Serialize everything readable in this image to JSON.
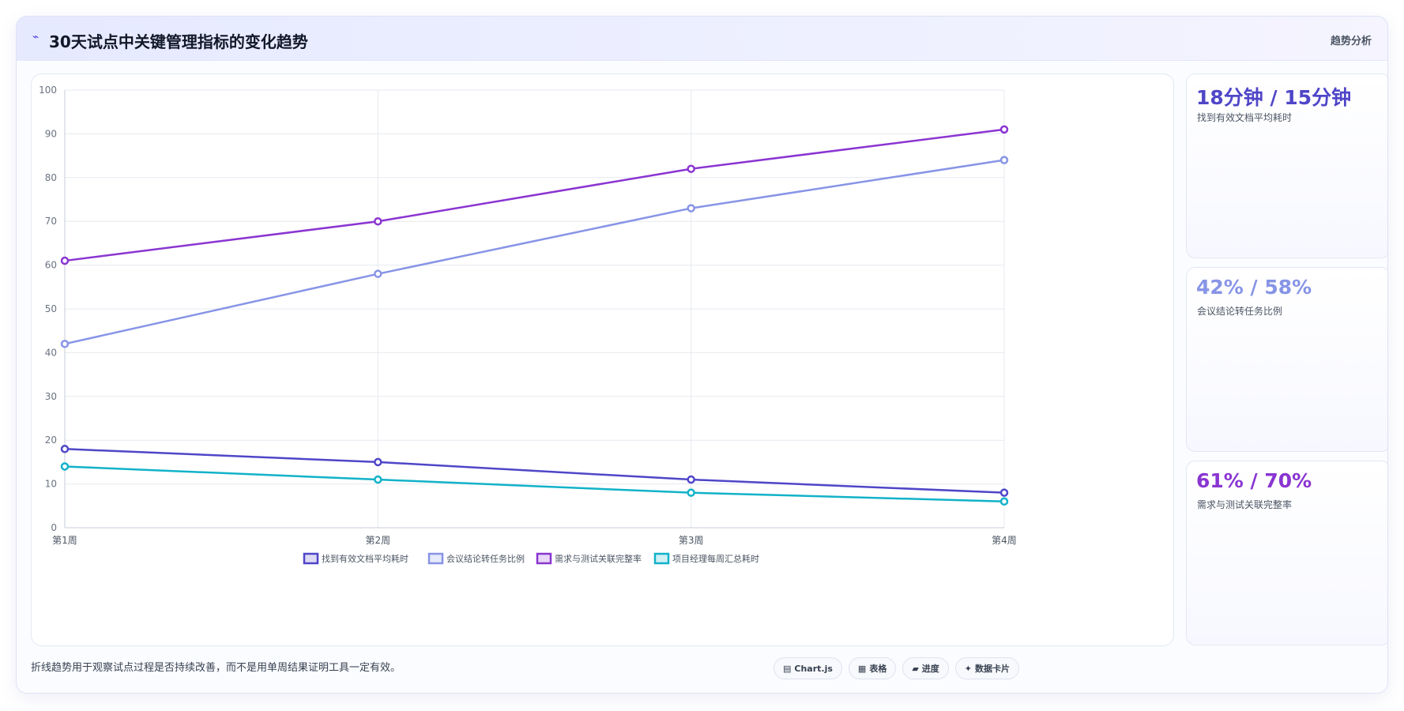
{
  "header": {
    "icon": "⌁",
    "title": "30天试点中关键管理指标的变化趋势",
    "tag": "趋势分析"
  },
  "chart_data": {
    "type": "line",
    "categories": [
      "第1周",
      "第2周",
      "第3周",
      "第4周"
    ],
    "ylim": [
      0,
      100
    ],
    "yticks": [
      "0",
      "10",
      "20",
      "30",
      "40",
      "50",
      "60",
      "70",
      "80",
      "90",
      "100"
    ],
    "grid": true,
    "legend_position": "bottom",
    "series": [
      {
        "name": "找到有效文档平均耗时",
        "values": [
          18,
          15,
          11,
          8
        ],
        "color": "#4f46c8"
      },
      {
        "name": "会议结论转任务比例",
        "values": [
          42,
          58,
          73,
          84
        ],
        "color": "#8794e6"
      },
      {
        "name": "需求与测试关联完整率",
        "values": [
          61,
          70,
          82,
          91
        ],
        "color": "#8a35d1"
      },
      {
        "name": "项目经理每周汇总耗时",
        "values": [
          14,
          11,
          8,
          6
        ],
        "color": "#12b2c9"
      }
    ]
  },
  "stats": [
    {
      "value": "18分钟 / 15分钟",
      "label": "找到有效文档平均耗时",
      "color": "#4f46c8"
    },
    {
      "value": "42% / 58%",
      "label": "会议结论转任务比例",
      "color": "#8794e6"
    },
    {
      "value": "61% / 70%",
      "label": "需求与测试关联完整率",
      "color": "#8a35d1"
    }
  ],
  "footer": {
    "note": "折线趋势用于观察试点过程是否持续改善，而不是用单周结果证明工具一定有效。",
    "chips": [
      {
        "icon": "▤",
        "icon_name": "chart-icon",
        "label": "Chart.js"
      },
      {
        "icon": "▦",
        "icon_name": "table-icon",
        "label": "表格"
      },
      {
        "icon": "▰",
        "icon_name": "progress-icon",
        "label": "进度"
      },
      {
        "icon": "✦",
        "icon_name": "card-icon",
        "label": "数据卡片"
      }
    ]
  }
}
